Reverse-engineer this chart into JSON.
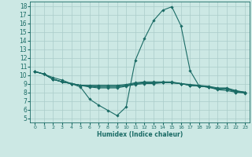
{
  "title": "",
  "xlabel": "Humidex (Indice chaleur)",
  "background_color": "#cce8e4",
  "grid_color": "#aaccca",
  "line_color": "#1a6b65",
  "xlim": [
    -0.5,
    23.5
  ],
  "ylim": [
    4.5,
    18.5
  ],
  "xticks": [
    0,
    1,
    2,
    3,
    4,
    5,
    6,
    7,
    8,
    9,
    10,
    11,
    12,
    13,
    14,
    15,
    16,
    17,
    18,
    19,
    20,
    21,
    22,
    23
  ],
  "yticks": [
    5,
    6,
    7,
    8,
    9,
    10,
    11,
    12,
    13,
    14,
    15,
    16,
    17,
    18
  ],
  "lines": [
    {
      "x": [
        0,
        1,
        2,
        3,
        4,
        5,
        6,
        7,
        8,
        9,
        10,
        11,
        12,
        13,
        14,
        15,
        16,
        17,
        18,
        19,
        20,
        21,
        22,
        23
      ],
      "y": [
        10.4,
        10.1,
        9.7,
        9.4,
        9.0,
        8.6,
        7.2,
        6.5,
        5.9,
        5.3,
        6.3,
        11.7,
        14.2,
        16.3,
        17.5,
        17.9,
        15.7,
        10.5,
        8.7,
        8.6,
        8.3,
        8.2,
        8.0,
        8.0
      ]
    },
    {
      "x": [
        0,
        1,
        2,
        3,
        4,
        5,
        6,
        7,
        8,
        9,
        10,
        11,
        12,
        13,
        14,
        15,
        16,
        17,
        18,
        19,
        20,
        21,
        22,
        23
      ],
      "y": [
        10.4,
        10.1,
        9.5,
        9.2,
        9.0,
        8.8,
        8.8,
        8.8,
        8.8,
        8.8,
        8.9,
        9.1,
        9.2,
        9.2,
        9.2,
        9.2,
        9.0,
        8.9,
        8.8,
        8.7,
        8.5,
        8.5,
        8.2,
        8.0
      ]
    },
    {
      "x": [
        0,
        1,
        2,
        3,
        4,
        5,
        6,
        7,
        8,
        9,
        10,
        11,
        12,
        13,
        14,
        15,
        16,
        17,
        18,
        19,
        20,
        21,
        22,
        23
      ],
      "y": [
        10.4,
        10.1,
        9.5,
        9.2,
        9.0,
        8.8,
        8.7,
        8.7,
        8.7,
        8.7,
        8.8,
        9.0,
        9.1,
        9.1,
        9.1,
        9.1,
        9.0,
        8.8,
        8.7,
        8.6,
        8.4,
        8.4,
        8.1,
        8.0
      ]
    },
    {
      "x": [
        0,
        1,
        2,
        3,
        4,
        5,
        6,
        7,
        8,
        9,
        10,
        11,
        12,
        13,
        14,
        15,
        16,
        17,
        18,
        19,
        20,
        21,
        22,
        23
      ],
      "y": [
        10.4,
        10.1,
        9.5,
        9.2,
        9.0,
        8.8,
        8.7,
        8.6,
        8.6,
        8.6,
        8.8,
        9.0,
        9.1,
        9.1,
        9.1,
        9.1,
        9.0,
        8.8,
        8.7,
        8.6,
        8.4,
        8.4,
        8.1,
        8.0
      ]
    },
    {
      "x": [
        0,
        1,
        2,
        3,
        4,
        5,
        6,
        7,
        8,
        9,
        10,
        11,
        12,
        13,
        14,
        15,
        16,
        17,
        18,
        19,
        20,
        21,
        22,
        23
      ],
      "y": [
        10.4,
        10.1,
        9.5,
        9.2,
        9.0,
        8.8,
        8.6,
        8.5,
        8.5,
        8.5,
        8.7,
        8.9,
        9.0,
        9.0,
        9.1,
        9.1,
        9.0,
        8.8,
        8.7,
        8.6,
        8.4,
        8.4,
        8.0,
        7.9
      ]
    }
  ]
}
